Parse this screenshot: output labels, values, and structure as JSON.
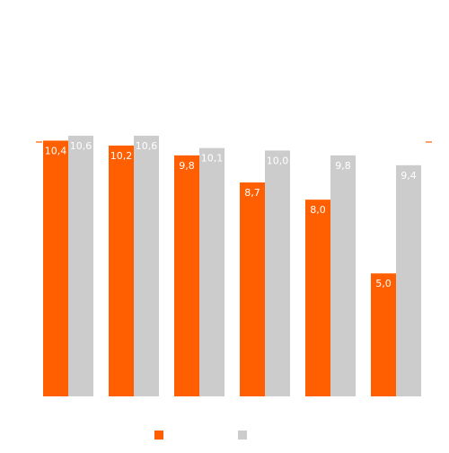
{
  "chart_data": {
    "type": "bar",
    "categories": [
      "",
      "",
      "",
      "",
      "",
      ""
    ],
    "series": [
      {
        "color": "#ff5f00",
        "values": [
          10.4,
          10.2,
          9.8,
          8.7,
          8.0,
          5.0
        ],
        "labels": [
          "10,4",
          "10,2",
          "9,8",
          "8,7",
          "8,0",
          "5,0"
        ]
      },
      {
        "color": "#cccccc",
        "values": [
          10.6,
          10.6,
          10.1,
          10.0,
          9.8,
          9.4
        ],
        "labels": [
          "10,6",
          "10,6",
          "10,1",
          "10,0",
          "9,8",
          "9,4"
        ]
      }
    ],
    "title": "",
    "xlabel": "",
    "ylabel": "",
    "ylim": [
      0,
      10.6
    ],
    "reference_line": {
      "value": 10.6,
      "color": "#ff5f00"
    },
    "grid": false,
    "legend": {
      "position": "bottom-center"
    },
    "data_label_color": "#ffffff"
  }
}
